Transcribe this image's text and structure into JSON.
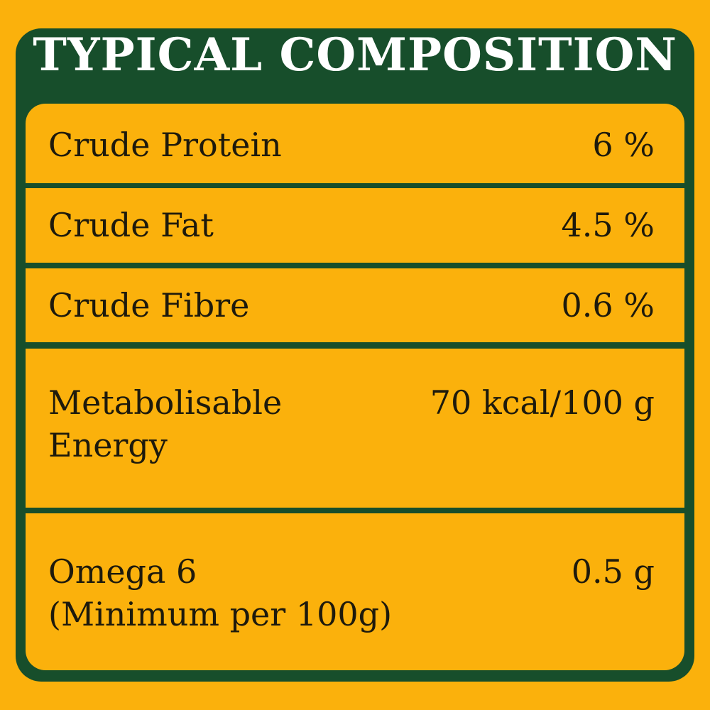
{
  "title": "TYPICAL COMPOSITION",
  "colors": {
    "background": "#fbb10c",
    "panel": "#174e2b",
    "title_text": "#ffffff",
    "body_text": "#1e1a0c"
  },
  "rows": [
    {
      "label_lines": [
        "Crude Protein"
      ],
      "value": "6 %"
    },
    {
      "label_lines": [
        "Crude Fat"
      ],
      "value": "4.5 %"
    },
    {
      "label_lines": [
        "Crude Fibre"
      ],
      "value": "0.6 %"
    },
    {
      "label_lines": [
        "Metabolisable",
        "Energy"
      ],
      "value": "70 kcal/100 g"
    },
    {
      "label_lines": [
        "Omega 6",
        "(Minimum per 100g)"
      ],
      "value": "0.5 g"
    }
  ]
}
